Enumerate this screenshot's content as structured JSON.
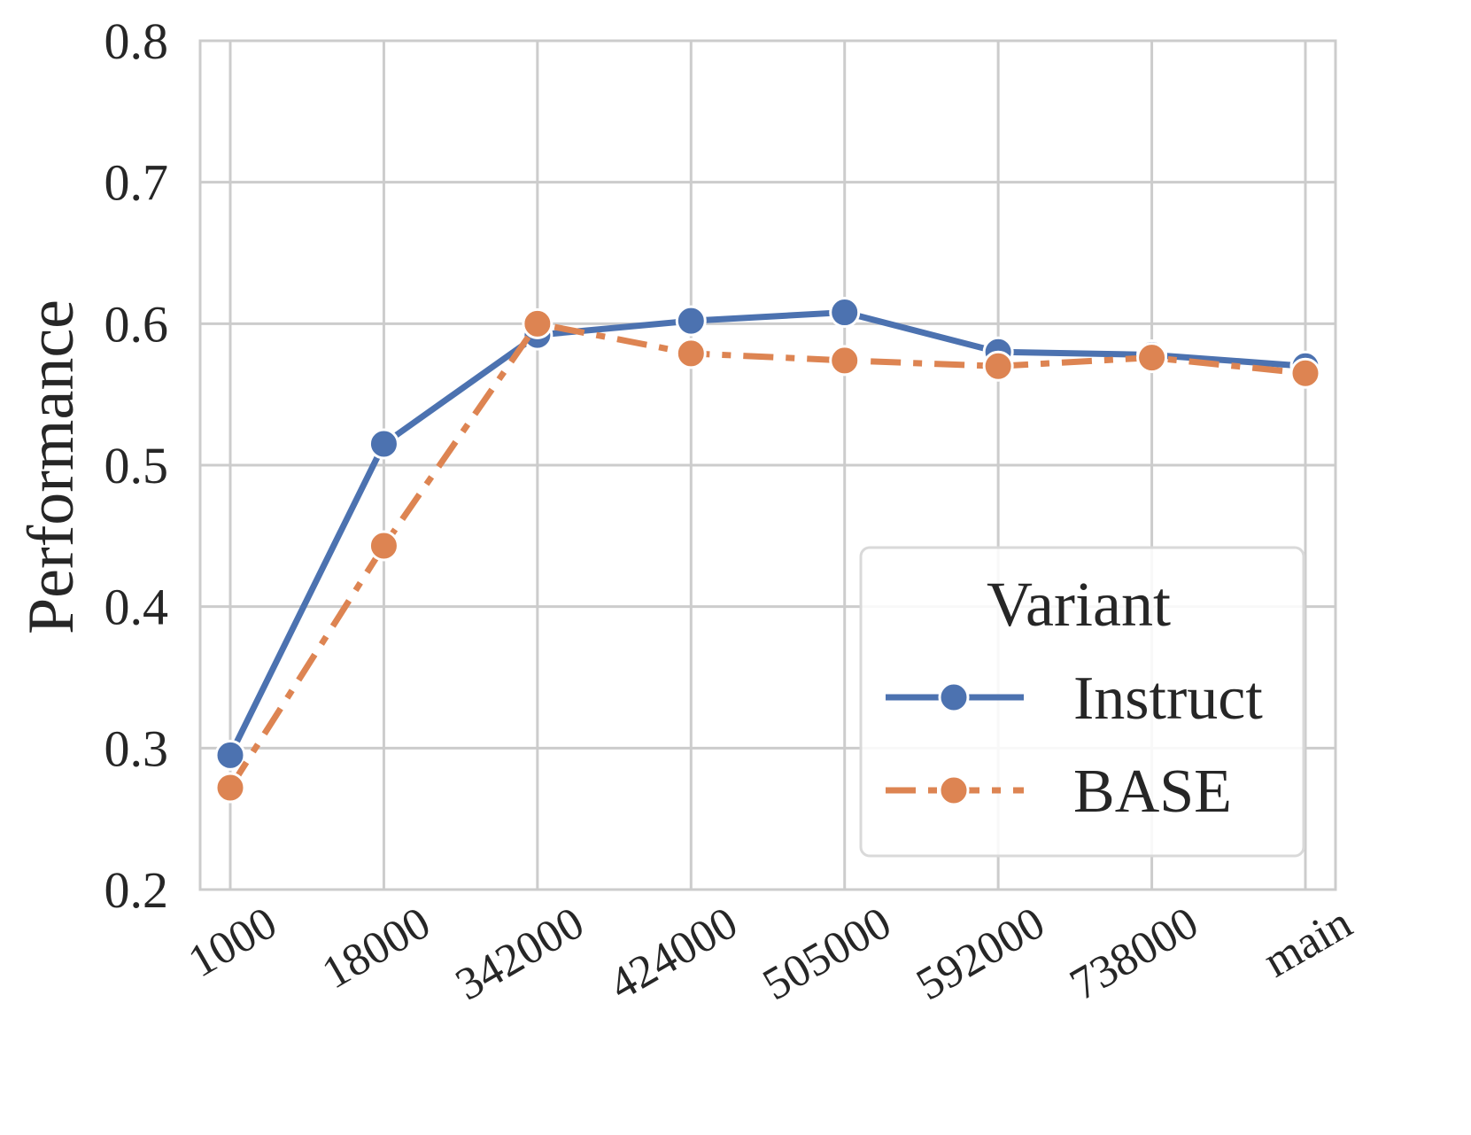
{
  "chart_data": {
    "type": "line",
    "title": "",
    "xlabel": "",
    "ylabel": "Performance",
    "categories": [
      "1000",
      "18000",
      "342000",
      "424000",
      "505000",
      "592000",
      "738000",
      "main"
    ],
    "ylim": [
      0.2,
      0.8
    ],
    "yticks": [
      "0.2",
      "0.3",
      "0.4",
      "0.5",
      "0.6",
      "0.7",
      "0.8"
    ],
    "grid": true,
    "legend": {
      "title": "Variant",
      "placement": "lower-right"
    },
    "series": [
      {
        "name": "Instruct",
        "color": "#4c72b0",
        "line_style": "solid",
        "values": [
          0.295,
          0.515,
          0.592,
          0.602,
          0.608,
          0.58,
          0.578,
          0.57
        ]
      },
      {
        "name": "BASE",
        "color": "#dd8452",
        "line_style": "dashdot",
        "values": [
          0.272,
          0.443,
          0.6,
          0.579,
          0.574,
          0.57,
          0.576,
          0.565
        ]
      }
    ]
  }
}
